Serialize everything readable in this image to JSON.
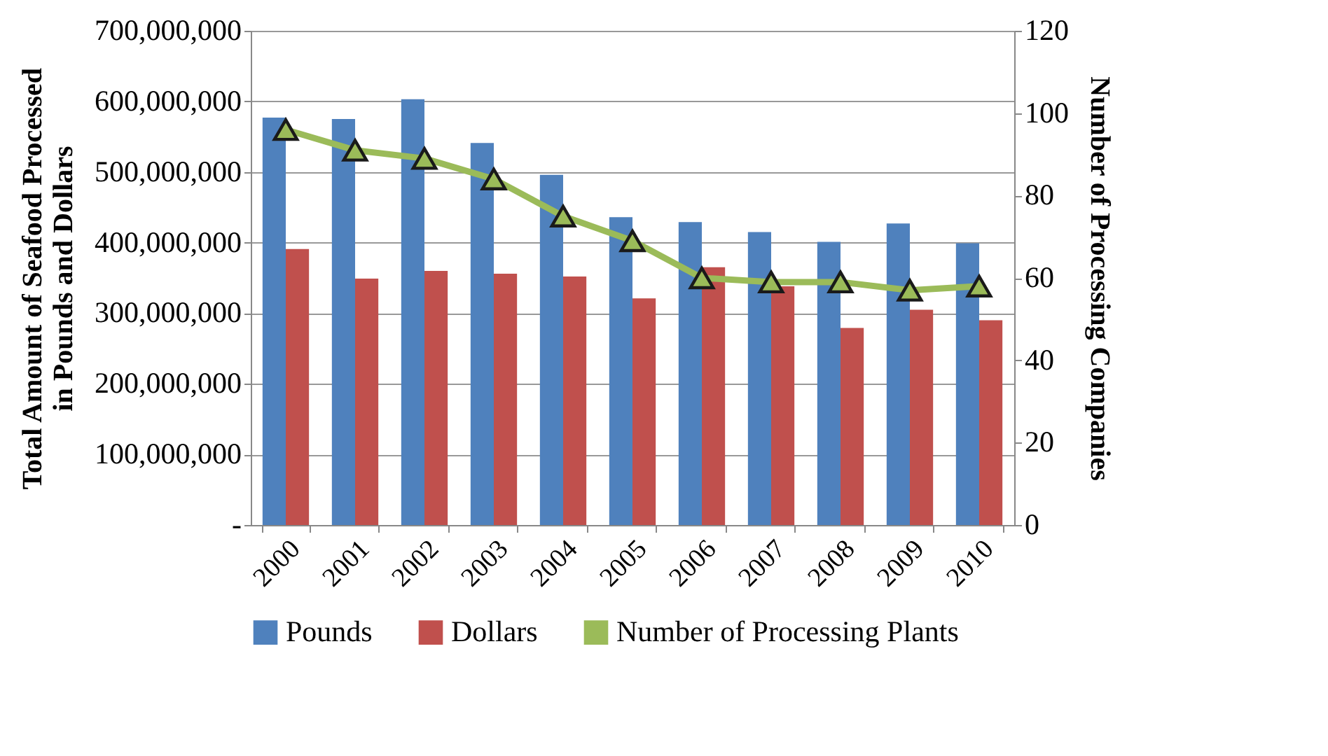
{
  "chart_data": {
    "type": "bar",
    "ylabel": "Total Amount of Seafood Processed\nin Pounds and Dollars",
    "y2label": "Number of Processing Companies",
    "categories": [
      "2000",
      "2001",
      "2002",
      "2003",
      "2004",
      "2005",
      "2006",
      "2007",
      "2008",
      "2009",
      "2010"
    ],
    "series": [
      {
        "name": "Pounds",
        "color": "#4f81bd",
        "values": [
          577000000,
          575000000,
          603000000,
          541000000,
          496000000,
          436000000,
          429000000,
          415000000,
          401000000,
          427000000,
          399000000
        ]
      },
      {
        "name": "Dollars",
        "color": "#c0504d",
        "values": [
          391000000,
          349000000,
          360000000,
          356000000,
          352000000,
          321000000,
          365000000,
          338000000,
          279000000,
          305000000,
          290000000
        ]
      },
      {
        "name": "Number of Processing Plants",
        "type": "line",
        "axis": "y2",
        "marker": "triangle",
        "color": "#9bbb59",
        "values": [
          96,
          91,
          89,
          84,
          75,
          69,
          60,
          59,
          59,
          57,
          58
        ]
      }
    ],
    "ylim": [
      0,
      700000000
    ],
    "yticks": [
      {
        "value": 0,
        "label": "-"
      },
      {
        "value": 100000000,
        "label": "100,000,000"
      },
      {
        "value": 200000000,
        "label": "200,000,000"
      },
      {
        "value": 300000000,
        "label": "300,000,000"
      },
      {
        "value": 400000000,
        "label": "400,000,000"
      },
      {
        "value": 500000000,
        "label": "500,000,000"
      },
      {
        "value": 600000000,
        "label": "600,000,000"
      },
      {
        "value": 700000000,
        "label": "700,000,000"
      }
    ],
    "y2lim": [
      0,
      120
    ],
    "y2ticks": [
      0,
      20,
      40,
      60,
      80,
      100,
      120
    ],
    "grid": "y",
    "legend": "bottom"
  }
}
